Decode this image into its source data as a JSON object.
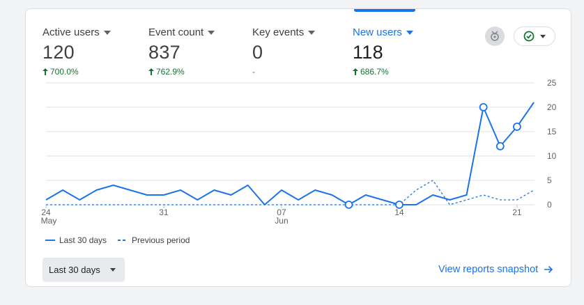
{
  "metrics": [
    {
      "label": "Active users",
      "value": "120",
      "delta": "700.0%",
      "trend": "up"
    },
    {
      "label": "Event count",
      "value": "837",
      "delta": "762.9%",
      "trend": "up"
    },
    {
      "label": "Key events",
      "value": "0",
      "delta": "-",
      "trend": "none"
    },
    {
      "label": "New users",
      "value": "118",
      "delta": "686.7%",
      "trend": "up",
      "selected": true
    }
  ],
  "icons": {
    "insights": "insights-icon",
    "status": "check-circle-icon",
    "dropdown": "chevron-down-icon",
    "link": "arrow-right-icon"
  },
  "colors": {
    "accent": "#1a73e8",
    "positive": "#137333"
  },
  "chart_data": {
    "type": "line",
    "x_tick_labels": [
      "24",
      "31",
      "07",
      "14",
      "21"
    ],
    "x_month_labels": [
      "May",
      "Jun"
    ],
    "y_ticks": [
      0,
      5,
      10,
      15,
      20,
      25
    ],
    "ylim": [
      0,
      25
    ],
    "grid": true,
    "y_axis_side": "right",
    "series": [
      {
        "name": "Last 30 days",
        "style": "solid",
        "values": [
          1,
          3,
          1,
          3,
          4,
          3,
          2,
          2,
          3,
          1,
          3,
          2,
          4,
          0,
          3,
          1,
          3,
          2,
          0,
          2,
          1,
          0,
          0,
          2,
          1,
          2,
          20,
          12,
          16,
          21
        ]
      },
      {
        "name": "Previous period",
        "style": "dashed",
        "values": [
          0,
          0,
          0,
          0,
          0,
          0,
          0,
          0,
          0,
          0,
          0,
          0,
          0,
          0,
          0,
          0,
          0,
          0,
          0,
          0,
          0,
          0,
          3,
          5,
          0,
          1,
          2,
          1,
          1,
          3
        ]
      }
    ],
    "markers": [
      18,
      21,
      26,
      27,
      28
    ]
  },
  "legend": {
    "current": "Last 30 days",
    "previous": "Previous period"
  },
  "date_range": {
    "label": "Last 30 days"
  },
  "footer": {
    "link_label": "View reports snapshot"
  }
}
